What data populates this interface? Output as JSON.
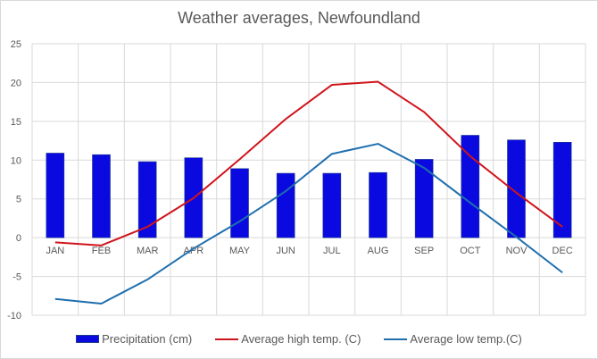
{
  "chart_data": {
    "type": "bar",
    "title": "Weather averages, Newfoundland",
    "xlabel": "",
    "ylabel": "",
    "ylim": [
      -10,
      25
    ],
    "yticks": [
      25,
      20,
      15,
      10,
      5,
      0,
      -5,
      -10
    ],
    "grid": true,
    "legend_position": "bottom",
    "categories": [
      "JAN",
      "FEB",
      "MAR",
      "APR",
      "MAY",
      "JUN",
      "JUL",
      "AUG",
      "SEP",
      "OCT",
      "NOV",
      "DEC"
    ],
    "series": [
      {
        "name": "Precipitation (cm)",
        "kind": "bar",
        "color": "#0a0ae0",
        "values": [
          10.9,
          10.7,
          9.8,
          10.3,
          8.9,
          8.3,
          8.3,
          8.4,
          10.1,
          13.2,
          12.6,
          12.3
        ]
      },
      {
        "name": "Average high temp. (C)",
        "kind": "line",
        "color": "#d0141c",
        "values": [
          -0.6,
          -1.0,
          1.4,
          5.1,
          10.1,
          15.3,
          19.7,
          20.1,
          16.2,
          10.5,
          5.8,
          1.4
        ]
      },
      {
        "name": "Average low temp.(C)",
        "kind": "line",
        "color": "#1f6fae",
        "values": [
          -7.9,
          -8.5,
          -5.4,
          -1.4,
          2.1,
          6.0,
          10.8,
          12.1,
          9.0,
          4.5,
          0.1,
          -4.5
        ]
      }
    ]
  }
}
